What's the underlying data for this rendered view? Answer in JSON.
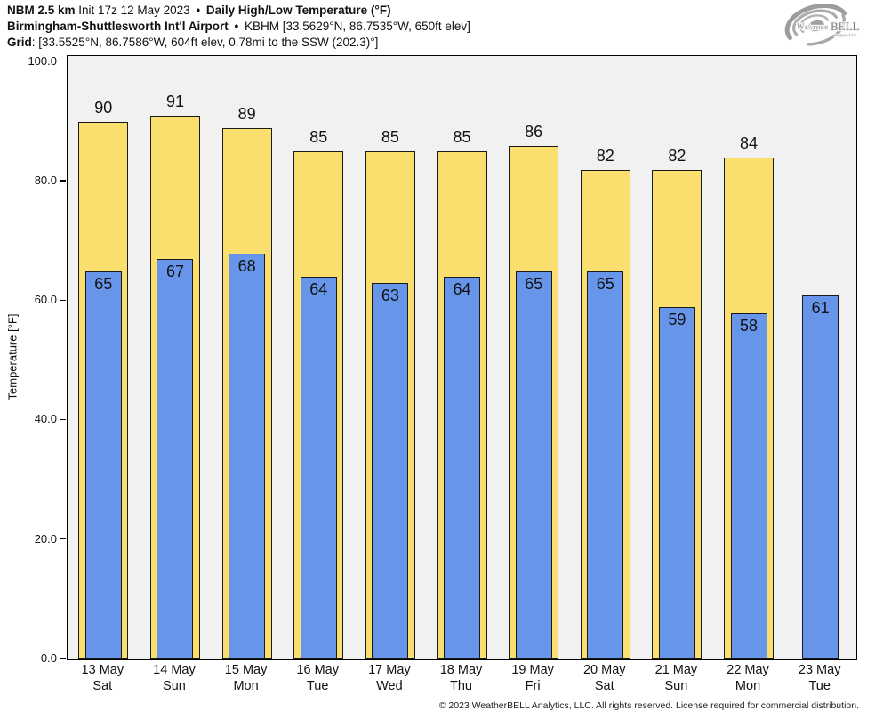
{
  "header": {
    "line1": {
      "model": "NBM 2.5 km",
      "init": "Init 17z 12 May 2023",
      "separator": "•",
      "product": "Daily High/Low Temperature (°F)"
    },
    "line2": {
      "station_name": "Birmingham-Shuttlesworth Int'l Airport",
      "separator": "•",
      "station_meta": "KBHM [33.5629°N, 86.7535°W, 650ft elev]"
    },
    "line3": {
      "label": "Grid",
      "meta": ": [33.5525°N, 86.7586°W, 604ft elev, 0.78mi to the SSW (202.3)°]"
    }
  },
  "logo": {
    "name": "weatherbell-logo",
    "brand_weather": "Weather",
    "brand_bell": "BELL",
    "brand_sub": "Analytics LLC"
  },
  "chart_data": {
    "type": "bar",
    "title": "NBM 2.5 km Daily High/Low Temperature (°F) — Birmingham-Shuttlesworth Int'l Airport (KBHM)",
    "xlabel": "",
    "ylabel": "Temperature [°F]",
    "ylim": [
      0,
      101
    ],
    "yticks": [
      0,
      20,
      40,
      60,
      80,
      100
    ],
    "ytick_labels": [
      "0.0",
      "20.0",
      "40.0",
      "60.0",
      "80.0",
      "100.0"
    ],
    "grid": false,
    "legend": false,
    "plot_bg": "#f1f1f1",
    "categories": [
      {
        "date": "13 May",
        "day": "Sat"
      },
      {
        "date": "14 May",
        "day": "Sun"
      },
      {
        "date": "15 May",
        "day": "Mon"
      },
      {
        "date": "16 May",
        "day": "Tue"
      },
      {
        "date": "17 May",
        "day": "Wed"
      },
      {
        "date": "18 May",
        "day": "Thu"
      },
      {
        "date": "19 May",
        "day": "Fri"
      },
      {
        "date": "20 May",
        "day": "Sat"
      },
      {
        "date": "21 May",
        "day": "Sun"
      },
      {
        "date": "22 May",
        "day": "Mon"
      },
      {
        "date": "23 May",
        "day": "Tue"
      }
    ],
    "series": [
      {
        "name": "Daily High",
        "color": "#FBDF6E",
        "values": [
          90,
          91,
          89,
          85,
          85,
          85,
          86,
          82,
          82,
          84,
          null
        ]
      },
      {
        "name": "Daily Low",
        "color": "#6695E9",
        "values": [
          65,
          67,
          68,
          64,
          63,
          64,
          65,
          65,
          59,
          58,
          61
        ]
      }
    ]
  },
  "footer": {
    "copyright": "© 2023 WeatherBELL Analytics, LLC. All rights reserved. License required for commercial distribution."
  }
}
